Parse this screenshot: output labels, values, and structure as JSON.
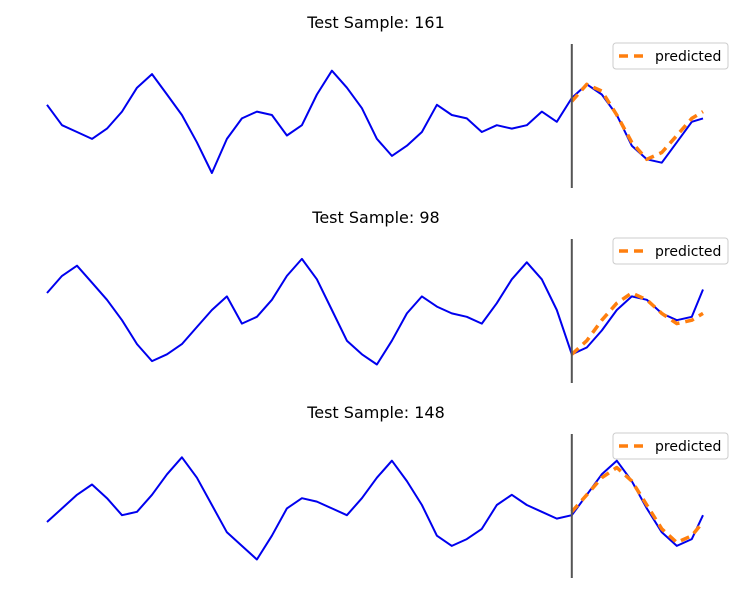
{
  "chart_data": [
    {
      "type": "line",
      "title": "Test Sample: 161",
      "xlabel": "",
      "ylabel": "",
      "grid": false,
      "legend": {
        "position": "top-right",
        "entries": [
          "predicted"
        ]
      },
      "divider_x": 140,
      "xlim": [
        0,
        175
      ],
      "ylim": [
        -2.2,
        2.2
      ],
      "series": [
        {
          "color": "#0000ee",
          "x": [
            0,
            4,
            8,
            12,
            16,
            20,
            24,
            28,
            32,
            36,
            40,
            44,
            48,
            52,
            56,
            60,
            64,
            68,
            72,
            76,
            80,
            84,
            88,
            92,
            96,
            100,
            104,
            108,
            112,
            116,
            120,
            124,
            128,
            132,
            136,
            140,
            144,
            148,
            152,
            156,
            160,
            164,
            168,
            172,
            175
          ],
          "y": [
            0.3,
            -0.3,
            -0.5,
            -0.7,
            -0.4,
            0.1,
            0.8,
            1.2,
            0.6,
            0.0,
            -0.8,
            -1.7,
            -0.7,
            -0.1,
            0.1,
            0.0,
            -0.6,
            -0.3,
            0.6,
            1.3,
            0.8,
            0.2,
            -0.7,
            -1.2,
            -0.9,
            -0.5,
            0.3,
            0.0,
            -0.1,
            -0.5,
            -0.3,
            -0.4,
            -0.3,
            0.1,
            -0.2,
            0.5,
            0.9,
            0.6,
            0.0,
            -0.9,
            -1.3,
            -1.4,
            -0.8,
            -0.2,
            -0.1
          ]
        },
        {
          "name": "predicted",
          "color": "#ff7f0e",
          "dashed": true,
          "x": [
            140,
            144,
            148,
            152,
            156,
            160,
            164,
            168,
            172,
            175
          ],
          "y": [
            0.4,
            0.9,
            0.7,
            0.0,
            -0.8,
            -1.3,
            -1.1,
            -0.6,
            -0.1,
            0.1
          ]
        }
      ]
    },
    {
      "type": "line",
      "title": "Test Sample: 98",
      "xlabel": "",
      "ylabel": "",
      "grid": false,
      "legend": {
        "position": "top-right",
        "entries": [
          "predicted"
        ]
      },
      "divider_x": 140,
      "xlim": [
        0,
        175
      ],
      "ylim": [
        -2.2,
        2.2
      ],
      "series": [
        {
          "color": "#0000ee",
          "x": [
            0,
            4,
            8,
            12,
            16,
            20,
            24,
            28,
            32,
            36,
            40,
            44,
            48,
            52,
            56,
            60,
            64,
            68,
            72,
            76,
            80,
            84,
            88,
            92,
            96,
            100,
            104,
            108,
            112,
            116,
            120,
            124,
            128,
            132,
            136,
            140,
            144,
            148,
            152,
            156,
            160,
            164,
            168,
            172,
            175
          ],
          "y": [
            0.5,
            1.0,
            1.3,
            0.8,
            0.3,
            -0.3,
            -1.0,
            -1.5,
            -1.3,
            -1.0,
            -0.5,
            0.0,
            0.4,
            -0.4,
            -0.2,
            0.3,
            1.0,
            1.5,
            0.9,
            0.0,
            -0.9,
            -1.3,
            -1.6,
            -0.9,
            -0.1,
            0.4,
            0.1,
            -0.1,
            -0.2,
            -0.4,
            0.2,
            0.9,
            1.4,
            0.9,
            0.0,
            -1.3,
            -1.1,
            -0.6,
            0.0,
            0.4,
            0.3,
            -0.1,
            -0.3,
            -0.2,
            0.6
          ]
        },
        {
          "name": "predicted",
          "color": "#ff7f0e",
          "dashed": true,
          "x": [
            140,
            144,
            148,
            152,
            156,
            160,
            164,
            168,
            172,
            175
          ],
          "y": [
            -1.3,
            -0.9,
            -0.3,
            0.2,
            0.5,
            0.3,
            -0.1,
            -0.4,
            -0.3,
            -0.1
          ]
        }
      ]
    },
    {
      "type": "line",
      "title": "Test Sample: 148",
      "xlabel": "",
      "ylabel": "",
      "grid": false,
      "legend": {
        "position": "top-right",
        "entries": [
          "predicted"
        ]
      },
      "divider_x": 140,
      "xlim": [
        0,
        175
      ],
      "ylim": [
        -2.2,
        2.2
      ],
      "series": [
        {
          "color": "#0000ee",
          "x": [
            0,
            4,
            8,
            12,
            16,
            20,
            24,
            28,
            32,
            36,
            40,
            44,
            48,
            52,
            56,
            60,
            64,
            68,
            72,
            76,
            80,
            84,
            88,
            92,
            96,
            100,
            104,
            108,
            112,
            116,
            120,
            124,
            128,
            132,
            136,
            140,
            144,
            148,
            152,
            156,
            160,
            164,
            168,
            172,
            175
          ],
          "y": [
            -0.5,
            -0.1,
            0.3,
            0.6,
            0.2,
            -0.3,
            -0.2,
            0.3,
            0.9,
            1.4,
            0.8,
            0.0,
            -0.8,
            -1.2,
            -1.6,
            -0.9,
            -0.1,
            0.2,
            0.1,
            -0.1,
            -0.3,
            0.2,
            0.8,
            1.3,
            0.7,
            0.0,
            -0.9,
            -1.2,
            -1.0,
            -0.7,
            0.0,
            0.3,
            0.0,
            -0.2,
            -0.4,
            -0.3,
            0.3,
            0.9,
            1.3,
            0.7,
            -0.1,
            -0.8,
            -1.2,
            -1.0,
            -0.3
          ]
        },
        {
          "name": "predicted",
          "color": "#ff7f0e",
          "dashed": true,
          "x": [
            140,
            144,
            148,
            152,
            156,
            160,
            164,
            168,
            172,
            175
          ],
          "y": [
            -0.2,
            0.3,
            0.8,
            1.1,
            0.7,
            0.0,
            -0.7,
            -1.1,
            -0.9,
            -0.5
          ]
        }
      ]
    }
  ]
}
